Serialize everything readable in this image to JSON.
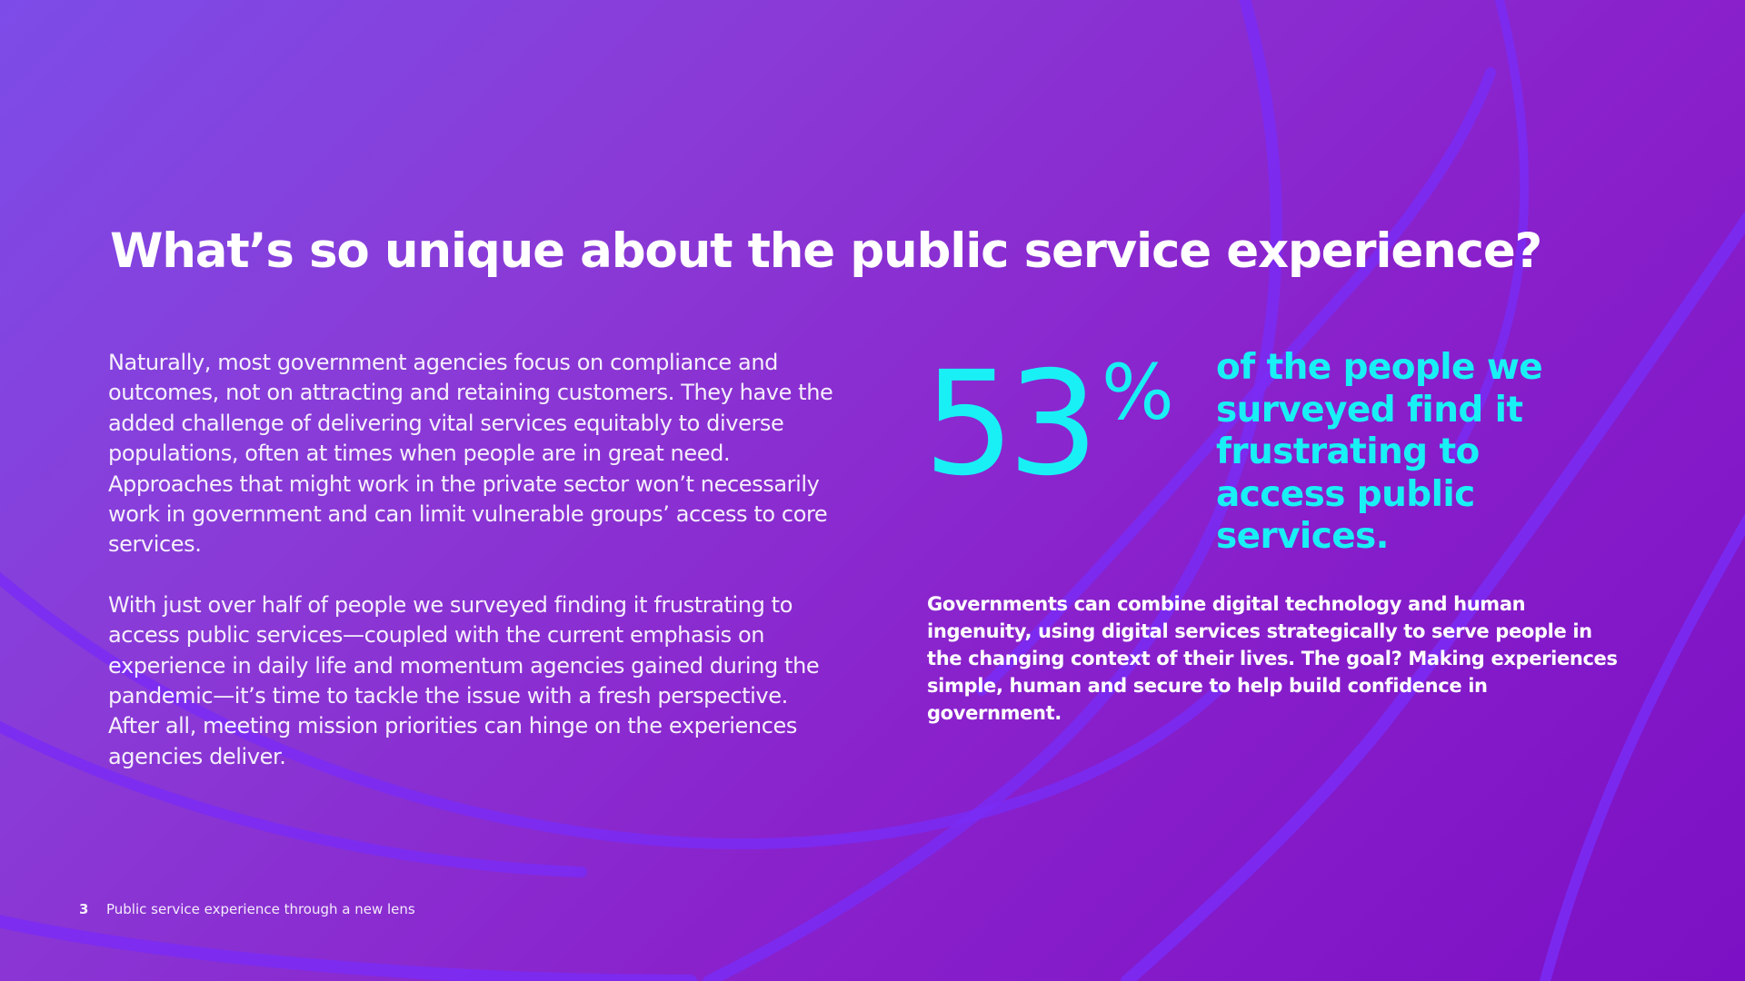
{
  "colors": {
    "background_start": "#7d4ce8",
    "background_end": "#7c10c4",
    "arc_stroke": "#7a2cf5",
    "accent_cyan": "#19f0f5",
    "text_white": "#ffffff"
  },
  "headline": "What’s so unique about the public service experience?",
  "body": {
    "paragraph_1": "Naturally, most government agencies focus on compliance and outcomes, not on attracting and retaining customers. They have the added challenge of delivering vital services equitably to diverse populations, often at times when people are in great need. Approaches that might work in the private sector won’t necessarily work in government and can limit vulnerable groups’ access to core services.",
    "paragraph_2": "With just over half of people we surveyed finding it frustrating to access public services—coupled with the current emphasis on experience in daily life and momentum agencies gained during the pandemic—it’s time to tackle the issue with a fresh perspective. After all, meeting mission priorities can hinge on the experiences agencies deliver."
  },
  "stat": {
    "number": "53",
    "symbol": "%",
    "caption": "of the people we surveyed find it frustrating to access public services."
  },
  "callout": "Governments can combine digital technology and human ingenuity, using digital services strategically to serve people in the changing context of their lives. The goal? Making experiences simple, human and secure to help build confidence in government.",
  "footer": {
    "page_number": "3",
    "document_title": "Public service experience through a new lens"
  }
}
